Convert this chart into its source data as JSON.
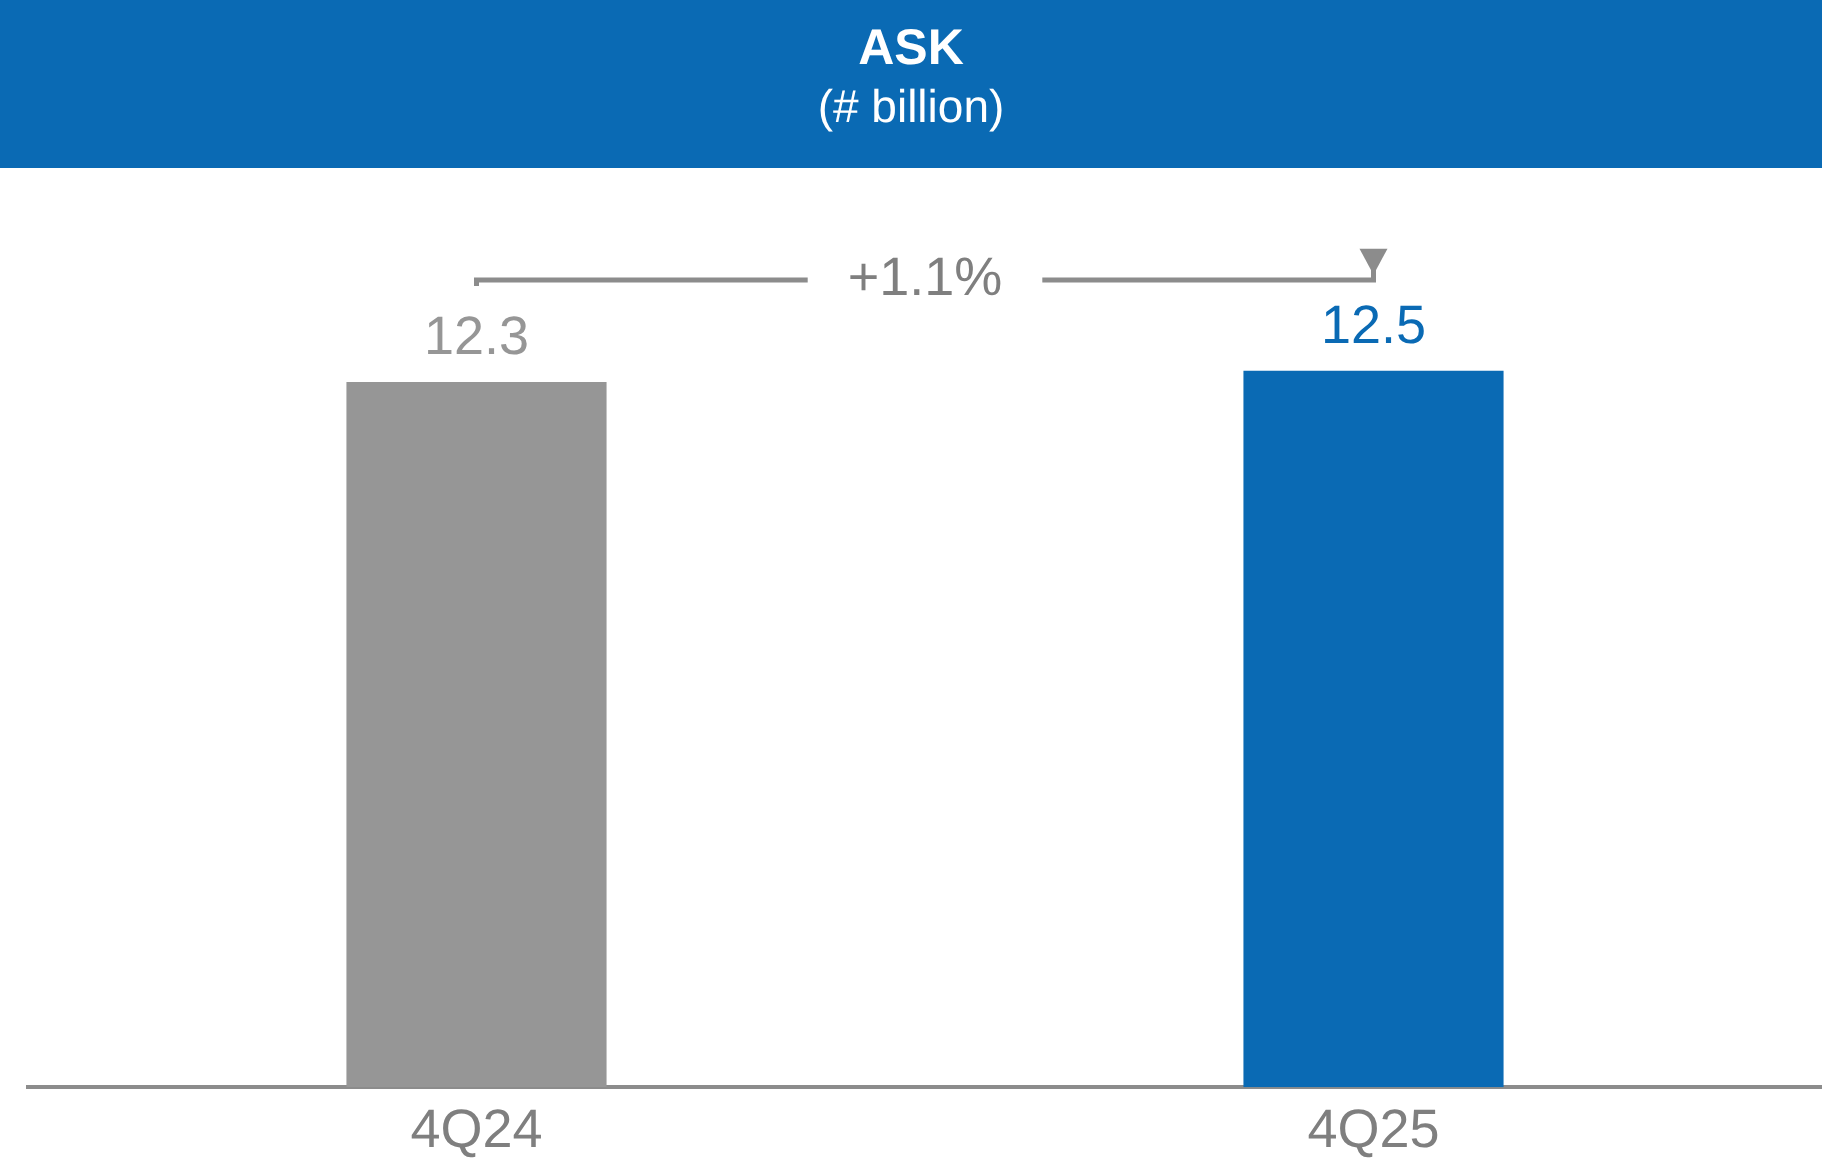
{
  "chart_data": {
    "type": "bar",
    "title": "ASK",
    "subtitle": "(# billion)",
    "categories": [
      "4Q24",
      "4Q25"
    ],
    "values": [
      12.3,
      12.5
    ],
    "colors": [
      "#969696",
      "#0a6ab4"
    ],
    "tick_labels": "x",
    "data_labels": true,
    "grid": false,
    "legend": false,
    "annotations": [
      "+1.1%"
    ]
  }
}
